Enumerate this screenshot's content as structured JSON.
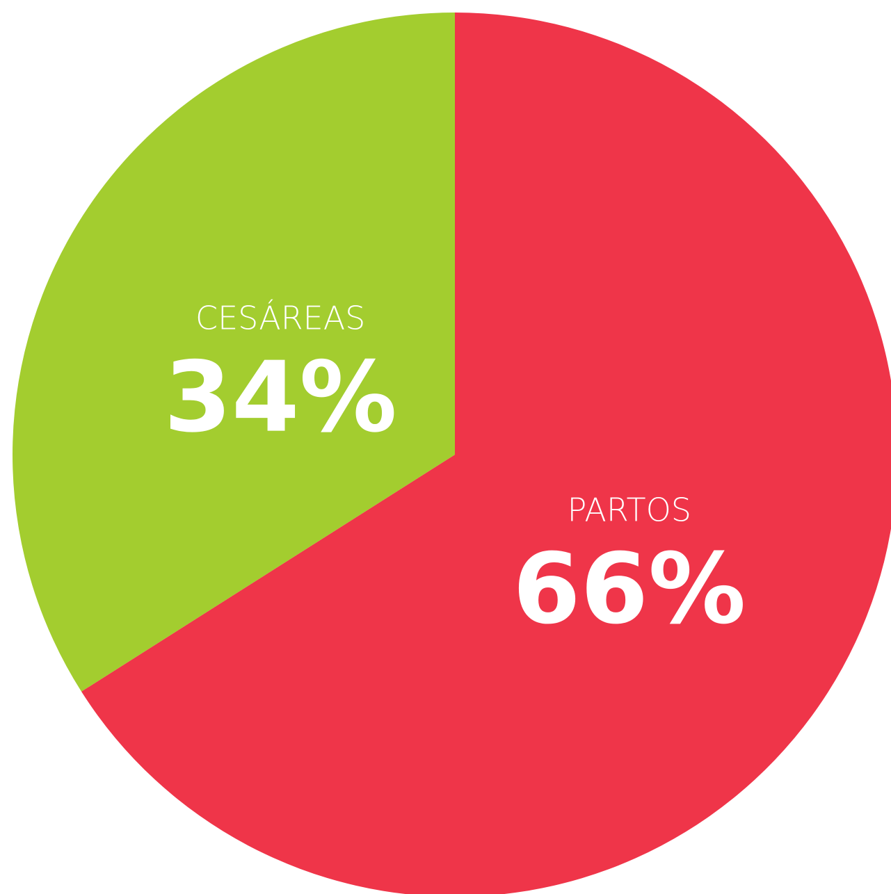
{
  "chart_data": {
    "type": "pie",
    "categories": [
      "PARTOS",
      "CESÁREAS"
    ],
    "values": [
      66,
      34
    ],
    "value_labels": [
      "66%",
      "34%"
    ],
    "colors": [
      "#ef3549",
      "#a3cd2f"
    ]
  }
}
